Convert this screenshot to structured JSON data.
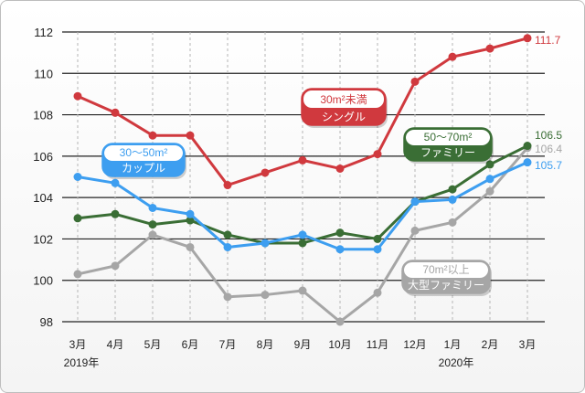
{
  "chart_data": {
    "type": "line",
    "categories": [
      "3月",
      "4月",
      "5月",
      "6月",
      "7月",
      "8月",
      "9月",
      "10月",
      "11月",
      "12月",
      "1月",
      "2月",
      "3月"
    ],
    "year_labels": [
      {
        "category_index": 0,
        "text": "2019年"
      },
      {
        "category_index": 10,
        "text": "2020年"
      }
    ],
    "ylim": [
      98,
      112
    ],
    "yticks": [
      98,
      100,
      102,
      104,
      106,
      108,
      110,
      112
    ],
    "grid": true,
    "series": [
      {
        "name_line1": "30m²未満",
        "name_line2": "シングル",
        "color": "#d0393e",
        "values": [
          108.9,
          108.1,
          107.0,
          107.0,
          104.6,
          105.2,
          105.8,
          105.4,
          106.1,
          109.6,
          110.8,
          111.2,
          111.7
        ],
        "end_label": "111.7"
      },
      {
        "name_line1": "30〜50m²",
        "name_line2": "カップル",
        "color": "#3d9ef0",
        "values": [
          105.0,
          104.7,
          103.5,
          103.2,
          101.6,
          101.8,
          102.2,
          101.5,
          101.5,
          103.8,
          103.9,
          104.9,
          105.7
        ],
        "end_label": "105.7"
      },
      {
        "name_line1": "50〜70m²",
        "name_line2": "ファミリー",
        "color": "#3a6e35",
        "values": [
          103.0,
          103.2,
          102.7,
          102.9,
          102.2,
          101.8,
          101.8,
          102.3,
          102.0,
          103.8,
          104.4,
          105.6,
          106.5
        ],
        "end_label": "106.5"
      },
      {
        "name_line1": "70m²以上",
        "name_line2": "大型ファミリー",
        "color": "#a6a6a6",
        "values": [
          100.3,
          100.7,
          102.2,
          101.6,
          99.2,
          99.3,
          99.5,
          98.0,
          99.4,
          102.4,
          102.8,
          104.3,
          106.4
        ],
        "end_label": "106.4"
      }
    ]
  }
}
